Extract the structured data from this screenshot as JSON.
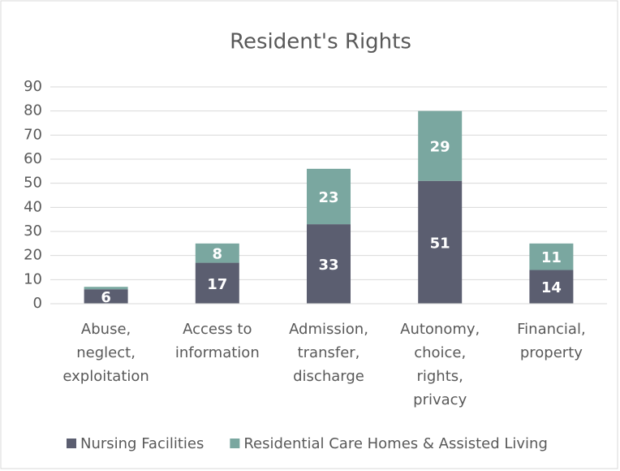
{
  "chart_data": {
    "type": "stacked_bar",
    "title": "Resident's Rights",
    "categories": [
      [
        "Abuse,",
        "neglect,",
        "exploitation"
      ],
      [
        "Access to",
        "information"
      ],
      [
        "Admission,",
        "transfer,",
        "discharge"
      ],
      [
        "Autonomy,",
        "choice,",
        "rights,",
        "privacy"
      ],
      [
        "Financial,",
        "property"
      ]
    ],
    "series": [
      {
        "name": "Nursing Facilities",
        "color": "#5b5e70",
        "values": [
          6,
          17,
          33,
          51,
          14
        ]
      },
      {
        "name": "Residential Care Homes & Assisted Living",
        "color": "#7aa7a0",
        "values": [
          1,
          8,
          23,
          29,
          11
        ],
        "value_labels": [
          null,
          "8",
          "23",
          "29",
          "11"
        ]
      }
    ],
    "ylim": [
      0,
      90
    ],
    "yticks": [
      0,
      10,
      20,
      30,
      40,
      50,
      60,
      70,
      80,
      90
    ],
    "grid": true,
    "legend": "bottom"
  }
}
